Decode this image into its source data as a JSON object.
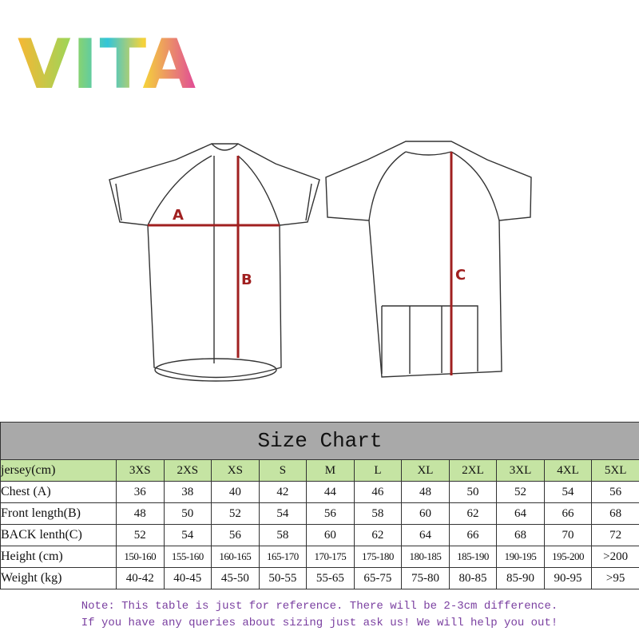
{
  "logo": "VITA",
  "diagram": {
    "labels": [
      "A",
      "B",
      "C"
    ]
  },
  "table": {
    "title": "Size Chart",
    "header": [
      "jersey(cm)",
      "3XS",
      "2XS",
      "XS",
      "S",
      "M",
      "L",
      "XL",
      "2XL",
      "3XL",
      "4XL",
      "5XL"
    ],
    "rows": [
      [
        "Chest (A)",
        "36",
        "38",
        "40",
        "42",
        "44",
        "46",
        "48",
        "50",
        "52",
        "54",
        "56"
      ],
      [
        "Front length(B)",
        "48",
        "50",
        "52",
        "54",
        "56",
        "58",
        "60",
        "62",
        "64",
        "66",
        "68"
      ],
      [
        "BACK lenth(C)",
        "52",
        "54",
        "56",
        "58",
        "60",
        "62",
        "64",
        "66",
        "68",
        "70",
        "72"
      ],
      [
        "Height  (cm)",
        "150-160",
        "155-160",
        "160-165",
        "165-170",
        "170-175",
        "175-180",
        "180-185",
        "185-190",
        "190-195",
        "195-200",
        ">200"
      ],
      [
        "Weight  (kg)",
        "40-42",
        "40-45",
        "45-50",
        "50-55",
        "55-65",
        "65-75",
        "75-80",
        "80-85",
        "85-90",
        "90-95",
        ">95"
      ]
    ]
  },
  "note": [
    "Note: This table is just for reference. There will be 2-3cm difference.",
    "If you have any queries about sizing just ask us! We will help you out!"
  ]
}
